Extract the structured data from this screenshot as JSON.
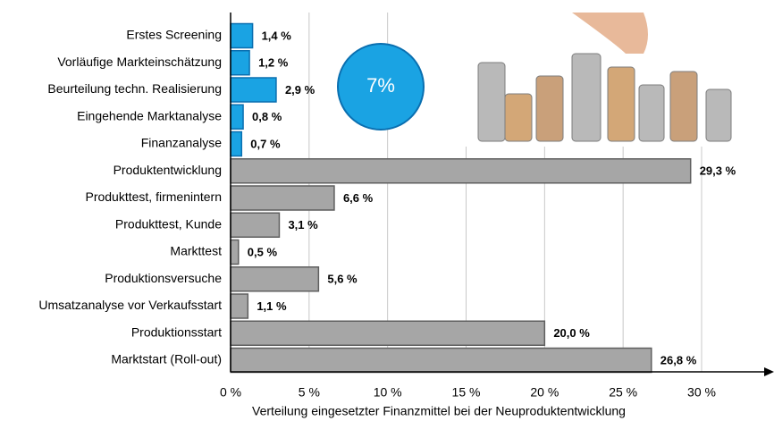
{
  "chart_data": {
    "type": "bar",
    "orientation": "horizontal",
    "x_label": "Verteilung eingesetzter Finanzmittel bei der Neuproduktentwicklung",
    "categories": [
      "Erstes Screening",
      "Vorläufige Markteinschätzung",
      "Beurteilung techn. Realisierung",
      "Eingehende Marktanalyse",
      "Finanzanalyse",
      "Produktentwicklung",
      "Produkttest, firmenintern",
      "Produkttest, Kunde",
      "Markttest",
      "Produktionsversuche",
      "Umsatzanalyse vor Verkaufsstart",
      "Produktionsstart",
      "Marktstart (Roll-out)"
    ],
    "values": [
      1.4,
      1.2,
      2.9,
      0.8,
      0.7,
      29.3,
      6.6,
      3.1,
      0.5,
      5.6,
      1.1,
      20.0,
      26.8
    ],
    "value_labels": [
      "1,4 %",
      "1,2 %",
      "2,9 %",
      "0,8 %",
      "0,7 %",
      "29,3 %",
      "6,6 %",
      "3,1 %",
      "0,5 %",
      "5,6 %",
      "1,1 %",
      "20,0 %",
      "26,8 %"
    ],
    "colors": [
      "#1aa3e3",
      "#1aa3e3",
      "#1aa3e3",
      "#1aa3e3",
      "#1aa3e3",
      "#a6a6a6",
      "#a6a6a6",
      "#a6a6a6",
      "#a6a6a6",
      "#a6a6a6",
      "#a6a6a6",
      "#a6a6a6",
      "#a6a6a6"
    ],
    "xlim": [
      0,
      30
    ],
    "xticks": [
      {
        "value": 0,
        "label": "0 %"
      },
      {
        "value": 5,
        "label": "5 %"
      },
      {
        "value": 10,
        "label": "10 %"
      },
      {
        "value": 15,
        "label": "15 %"
      },
      {
        "value": 20,
        "label": "20 %"
      },
      {
        "value": 25,
        "label": "25 %"
      },
      {
        "value": 30,
        "label": "30 %"
      }
    ],
    "grid": true,
    "annotation": "7%"
  }
}
